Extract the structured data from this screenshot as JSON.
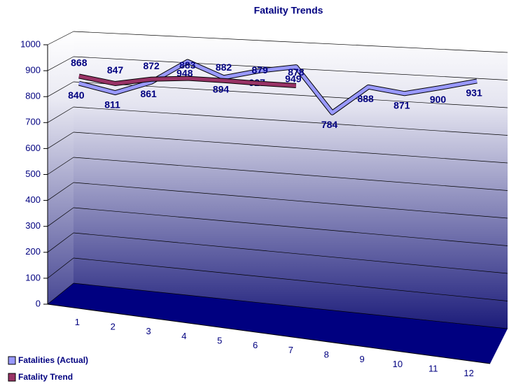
{
  "chart_data": {
    "type": "line",
    "title": "Fatality Trends",
    "categories": [
      "1",
      "2",
      "3",
      "4",
      "5",
      "6",
      "7",
      "8",
      "9",
      "10",
      "11",
      "12"
    ],
    "series": [
      {
        "name": "Fatalities (Actual)",
        "color": "#9999ff",
        "values": [
          840,
          811,
          861,
          948,
          894,
          927,
          949,
          784,
          888,
          871,
          900,
          931
        ]
      },
      {
        "name": "Fatality Trend",
        "color": "#993366",
        "values": [
          868,
          847,
          872,
          883,
          882,
          879,
          878,
          null,
          null,
          null,
          null,
          null
        ]
      }
    ],
    "ylim": [
      0,
      1000
    ],
    "yticks": [
      0,
      100,
      200,
      300,
      400,
      500,
      600,
      700,
      800,
      900,
      1000
    ],
    "grid": true
  }
}
